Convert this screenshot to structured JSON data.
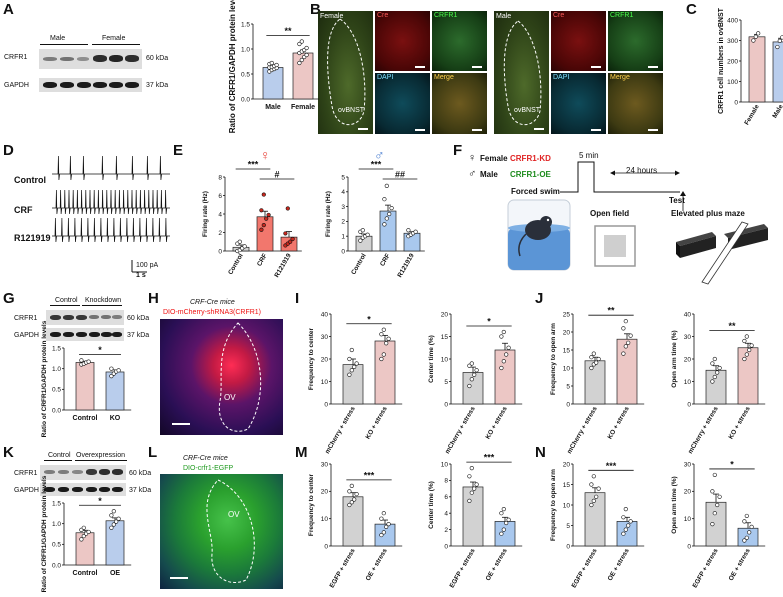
{
  "panels": {
    "A": {
      "letter": "A",
      "blot": {
        "groups": [
          "Male",
          "Female"
        ],
        "rows": [
          "CRFR1",
          "GAPDH"
        ],
        "sizes": [
          "60 kDa",
          "37 kDa"
        ]
      }
    },
    "B": {
      "letter": "B",
      "female": {
        "sex": "Female",
        "region": "ovBNST",
        "channels": [
          "Cre",
          "CRFR1",
          "DAPI",
          "Merge"
        ]
      },
      "male": {
        "sex": "Male",
        "region": "ovBNST",
        "channels": [
          "Cre",
          "CRFR1",
          "DAPI",
          "Merge"
        ]
      }
    },
    "C": {
      "letter": "C"
    },
    "D": {
      "letter": "D",
      "traces": [
        "Control",
        "CRF",
        "R121919"
      ],
      "scale_y": "100 pA",
      "scale_x": "1 s"
    },
    "E": {
      "letter": "E",
      "female_symbol": "♀",
      "male_symbol": "♂"
    },
    "F": {
      "letter": "F",
      "female_line": "Female",
      "female_model": "CRFR1-KD",
      "male_line": "Male",
      "male_model": "CRFR1-OE",
      "female_symbol": "♀",
      "male_symbol": "♂",
      "t1": "5 min",
      "t2": "24 hours",
      "test": "Test",
      "forced_swim": "Forced swim",
      "open_field": "Open field",
      "epm": "Elevated plus maze"
    },
    "G": {
      "letter": "G",
      "blot": {
        "groups": [
          "Control",
          "Knockdown"
        ],
        "rows": [
          "CRFR1",
          "GAPDH"
        ],
        "sizes": [
          "60 kDa",
          "37 kDa"
        ]
      }
    },
    "H": {
      "letter": "H",
      "mice": "CRF-Cre mice",
      "virus": "DIO-mCherry-shRNA3(CRFR1)",
      "region": "OV"
    },
    "I": {
      "letter": "I"
    },
    "J": {
      "letter": "J"
    },
    "K": {
      "letter": "K",
      "blot": {
        "groups": [
          "Control",
          "Overexpression"
        ],
        "rows": [
          "CRFR1",
          "GAPDH"
        ],
        "sizes": [
          "60 kDa",
          "37 kDa"
        ]
      }
    },
    "L": {
      "letter": "L",
      "mice": "CRF-Cre mice",
      "virus": "DIO-crfr1-EGFP",
      "region": "OV"
    },
    "M": {
      "letter": "M"
    },
    "N": {
      "letter": "N"
    }
  },
  "chart_data": [
    {
      "id": "A",
      "type": "bar",
      "categories": [
        "Male",
        "Female"
      ],
      "values": [
        0.63,
        0.92
      ],
      "errors": [
        0.03,
        0.06
      ],
      "points": [
        [
          0.55,
          0.58,
          0.6,
          0.62,
          0.63,
          0.64,
          0.66,
          0.68,
          0.7,
          0.72
        ],
        [
          0.72,
          0.78,
          0.84,
          0.88,
          0.92,
          0.95,
          0.98,
          1.02,
          1.1,
          1.15
        ]
      ],
      "colors": [
        "#b9cdec",
        "#ecc7c5"
      ],
      "ylabel": "Ratio of CRFR1/GAPDH protein levels",
      "ylim": [
        0,
        1.5
      ],
      "yticks": [
        "0.0",
        "0.5",
        "1.0",
        "1.5"
      ],
      "sig": [
        {
          "label": "**",
          "from": 0,
          "to": 1
        }
      ]
    },
    {
      "id": "C",
      "type": "bar",
      "categories": [
        "Female",
        "Male"
      ],
      "values": [
        318,
        293
      ],
      "errors": [
        12,
        18
      ],
      "points": [
        [
          300,
          318,
          335
        ],
        [
          268,
          298,
          315
        ]
      ],
      "colors": [
        "#ecc7c5",
        "#b9cdec"
      ],
      "ylabel": "CRFR1 cell numbers in ovBNST",
      "ylim": [
        0,
        400
      ],
      "yticks": [
        "0",
        "100",
        "200",
        "300",
        "400"
      ],
      "sig": []
    },
    {
      "id": "E1",
      "type": "bar",
      "categories": [
        "Control",
        "CRF",
        "R121919"
      ],
      "values": [
        0.4,
        3.7,
        1.5
      ],
      "errors": [
        0.25,
        0.6,
        0.6
      ],
      "points": [
        [
          0,
          0.1,
          0.3,
          0.5,
          0.8,
          1.0
        ],
        [
          2.3,
          2.8,
          3.5,
          3.9,
          4.4,
          6.1
        ],
        [
          0.6,
          0.8,
          1.0,
          1.3,
          1.9,
          4.6
        ]
      ],
      "colors": [
        "#d2d2d2",
        "#f2776d",
        "#f2776d"
      ],
      "ylabel": "Firing rate (Hz)",
      "ylim": [
        0,
        8
      ],
      "yticks": [
        "0",
        "2",
        "4",
        "6",
        "8"
      ],
      "sig": [
        {
          "label": "***",
          "from": 0,
          "to": 1
        },
        {
          "label": "#",
          "from": 1,
          "to": 2
        }
      ]
    },
    {
      "id": "E2",
      "type": "bar",
      "categories": [
        "Control",
        "CRF",
        "R121919"
      ],
      "values": [
        1.0,
        2.7,
        1.2
      ],
      "errors": [
        0.15,
        0.4,
        0.1
      ],
      "points": [
        [
          0.7,
          0.9,
          1.0,
          1.1,
          1.3,
          1.4
        ],
        [
          1.8,
          2.2,
          2.5,
          2.9,
          3.5,
          4.4
        ],
        [
          1.0,
          1.1,
          1.2,
          1.3,
          1.4
        ]
      ],
      "colors": [
        "#d2d2d2",
        "#a9c8ee",
        "#a9c8ee"
      ],
      "ylabel": "Firing rate (Hz)",
      "ylim": [
        0,
        5
      ],
      "yticks": [
        "0",
        "1",
        "2",
        "3",
        "4",
        "5"
      ],
      "sig": [
        {
          "label": "***",
          "from": 0,
          "to": 1
        },
        {
          "label": "##",
          "from": 1,
          "to": 2
        }
      ]
    },
    {
      "id": "G",
      "type": "bar",
      "categories": [
        "Control",
        "KO"
      ],
      "values": [
        1.15,
        0.92
      ],
      "errors": [
        0.03,
        0.05
      ],
      "points": [
        [
          1.1,
          1.12,
          1.15,
          1.17,
          1.2
        ],
        [
          0.82,
          0.88,
          0.93,
          0.96,
          1.0
        ]
      ],
      "colors": [
        "#ecc7c5",
        "#b9cdec"
      ],
      "ylabel": "Ratio of CRFR1/GAPDH protein levels",
      "ylim": [
        0,
        1.5
      ],
      "yticks": [
        "0.0",
        "0.5",
        "1.0",
        "1.5"
      ],
      "sig": [
        {
          "label": "*",
          "from": 0,
          "to": 1
        }
      ]
    },
    {
      "id": "I1",
      "type": "bar",
      "categories": [
        "mCherry + stress",
        "KO + stress"
      ],
      "values": [
        17.5,
        28
      ],
      "errors": [
        2.5,
        2.5
      ],
      "points": [
        [
          13,
          15,
          16.5,
          18,
          20,
          24
        ],
        [
          20,
          22,
          27,
          29,
          31,
          33
        ]
      ],
      "colors": [
        "#d2d2d2",
        "#ecc7c5"
      ],
      "ylabel": "Frequency to center",
      "ylim": [
        0,
        40
      ],
      "yticks": [
        "0",
        "10",
        "20",
        "30",
        "40"
      ],
      "sig": [
        {
          "label": "*",
          "from": 0,
          "to": 1
        }
      ]
    },
    {
      "id": "I2",
      "type": "bar",
      "categories": [
        "mCherry + stress",
        "KO + stress"
      ],
      "values": [
        7,
        12
      ],
      "errors": [
        1.2,
        1.5
      ],
      "points": [
        [
          4,
          5.5,
          6.5,
          7.5,
          8.5,
          9
        ],
        [
          8,
          9.5,
          11,
          12.5,
          15,
          16
        ]
      ],
      "colors": [
        "#d2d2d2",
        "#ecc7c5"
      ],
      "ylabel": "Center time (%)",
      "ylim": [
        0,
        20
      ],
      "yticks": [
        "0",
        "5",
        "10",
        "15",
        "20"
      ],
      "sig": [
        {
          "label": "*",
          "from": 0,
          "to": 1
        }
      ]
    },
    {
      "id": "J1",
      "type": "bar",
      "categories": [
        "mCherry + stress",
        "KO + stress"
      ],
      "values": [
        12,
        18
      ],
      "errors": [
        1,
        1.5
      ],
      "points": [
        [
          10,
          11,
          11.5,
          12.5,
          13,
          14
        ],
        [
          14,
          16,
          17,
          19,
          21,
          23
        ]
      ],
      "colors": [
        "#d2d2d2",
        "#ecc7c5"
      ],
      "ylabel": "Frequency to open arm",
      "ylim": [
        0,
        25
      ],
      "yticks": [
        "0",
        "5",
        "10",
        "15",
        "20",
        "25"
      ],
      "sig": [
        {
          "label": "**",
          "from": 0,
          "to": 1
        }
      ]
    },
    {
      "id": "J2",
      "type": "bar",
      "categories": [
        "mCherry + stress",
        "KO + stress"
      ],
      "values": [
        15,
        25
      ],
      "errors": [
        2,
        2
      ],
      "points": [
        [
          10,
          12,
          14,
          16,
          18,
          20
        ],
        [
          20,
          22,
          24,
          26,
          28,
          30
        ]
      ],
      "colors": [
        "#d2d2d2",
        "#ecc7c5"
      ],
      "ylabel": "Open arm time (%)",
      "ylim": [
        0,
        40
      ],
      "yticks": [
        "0",
        "10",
        "20",
        "30",
        "40"
      ],
      "sig": [
        {
          "label": "**",
          "from": 0,
          "to": 1
        }
      ]
    },
    {
      "id": "K",
      "type": "bar",
      "categories": [
        "Control",
        "OE"
      ],
      "values": [
        0.78,
        1.07
      ],
      "errors": [
        0.06,
        0.07
      ],
      "points": [
        [
          0.62,
          0.7,
          0.76,
          0.8,
          0.85,
          0.9
        ],
        [
          0.9,
          0.98,
          1.05,
          1.12,
          1.2,
          1.3
        ]
      ],
      "colors": [
        "#ecc7c5",
        "#b9cdec"
      ],
      "ylabel": "Ratio of CRFR1/GAPDH protein levels",
      "ylim": [
        0,
        1.5
      ],
      "yticks": [
        "0.0",
        "0.5",
        "1.0",
        "1.5"
      ],
      "sig": [
        {
          "label": "*",
          "from": 0,
          "to": 1
        }
      ]
    },
    {
      "id": "M1",
      "type": "bar",
      "categories": [
        "EGFP + stress",
        "OE + stress"
      ],
      "values": [
        18,
        8
      ],
      "errors": [
        1.5,
        1.5
      ],
      "points": [
        [
          15,
          16,
          17,
          19,
          20,
          22
        ],
        [
          4,
          5,
          7,
          8,
          10,
          12
        ]
      ],
      "colors": [
        "#d2d2d2",
        "#a9c8ee"
      ],
      "ylabel": "Frequency to center",
      "ylim": [
        0,
        30
      ],
      "yticks": [
        "0",
        "10",
        "20",
        "30"
      ],
      "sig": [
        {
          "label": "***",
          "from": 0,
          "to": 1
        }
      ]
    },
    {
      "id": "M2",
      "type": "bar",
      "categories": [
        "EGFP + stress",
        "OE + stress"
      ],
      "values": [
        7.2,
        3
      ],
      "errors": [
        0.6,
        0.5
      ],
      "points": [
        [
          5.5,
          6.5,
          7,
          7.5,
          8.5,
          9.5
        ],
        [
          1.5,
          2,
          2.8,
          3.2,
          4,
          4.5
        ]
      ],
      "colors": [
        "#d2d2d2",
        "#a9c8ee"
      ],
      "ylabel": "Center time (%)",
      "ylim": [
        0,
        10
      ],
      "yticks": [
        "0",
        "2",
        "4",
        "6",
        "8",
        "10"
      ],
      "sig": [
        {
          "label": "***",
          "from": 0,
          "to": 1
        }
      ]
    },
    {
      "id": "N1",
      "type": "bar",
      "categories": [
        "EGFP + stress",
        "OE + stress"
      ],
      "values": [
        13,
        6
      ],
      "errors": [
        1.2,
        1
      ],
      "points": [
        [
          10,
          11,
          12,
          14,
          15,
          17
        ],
        [
          3,
          4,
          5,
          6,
          7,
          9
        ]
      ],
      "colors": [
        "#d2d2d2",
        "#a9c8ee"
      ],
      "ylabel": "Frequency to open arm",
      "ylim": [
        0,
        20
      ],
      "yticks": [
        "0",
        "5",
        "10",
        "15",
        "20"
      ],
      "sig": [
        {
          "label": "***",
          "from": 0,
          "to": 1
        }
      ]
    },
    {
      "id": "N2",
      "type": "bar",
      "categories": [
        "EGFP + stress",
        "OE + stress"
      ],
      "values": [
        16,
        6.5
      ],
      "errors": [
        3,
        2
      ],
      "points": [
        [
          8,
          12,
          15,
          18,
          20,
          26
        ],
        [
          2,
          3,
          5,
          7,
          9,
          11
        ]
      ],
      "colors": [
        "#d2d2d2",
        "#a9c8ee"
      ],
      "ylabel": "Open arm time (%)",
      "ylim": [
        0,
        30
      ],
      "yticks": [
        "0",
        "10",
        "20",
        "30"
      ],
      "sig": [
        {
          "label": "*",
          "from": 0,
          "to": 1
        }
      ]
    }
  ]
}
